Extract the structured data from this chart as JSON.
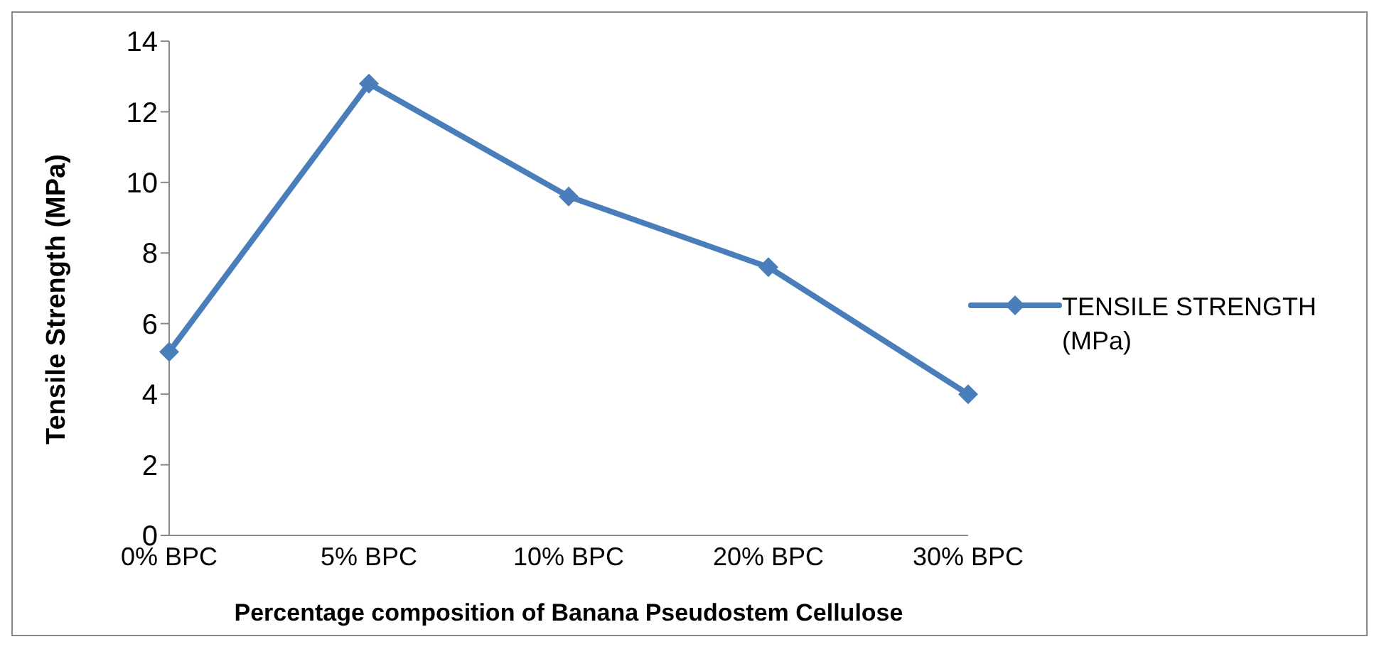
{
  "chart_data": {
    "type": "line",
    "xlabel": "Percentage composition of Banana Pseudostem Cellulose",
    "ylabel": "Tensile Strength (MPa)",
    "categories": [
      "0% BPC",
      "5% BPC",
      "10% BPC",
      "20% BPC",
      "30% BPC"
    ],
    "series": [
      {
        "name": "TENSILE STRENGTH (MPa)",
        "color": "#4a7ebb",
        "values": [
          5.2,
          12.8,
          9.6,
          7.6,
          4.0
        ]
      }
    ],
    "ylim": [
      0,
      14
    ],
    "yticks": [
      0,
      2,
      4,
      6,
      8,
      10,
      12,
      14
    ],
    "grid": false,
    "legend": "right",
    "marker": "diamond",
    "line_style": "solid"
  }
}
